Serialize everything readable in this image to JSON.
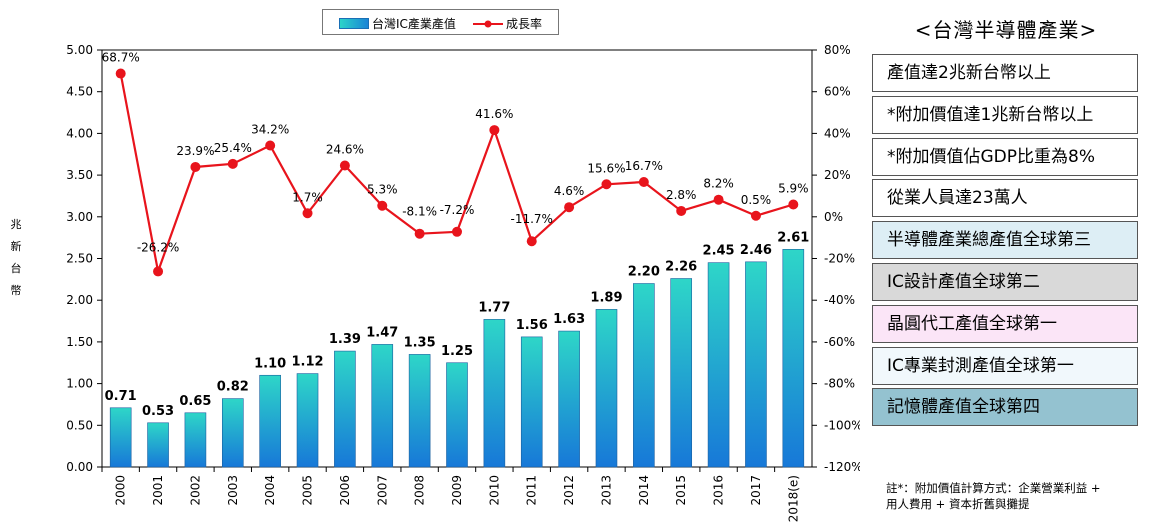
{
  "chart_data": {
    "type": "bar",
    "categories": [
      "2000",
      "2001",
      "2002",
      "2003",
      "2004",
      "2005",
      "2006",
      "2007",
      "2008",
      "2009",
      "2010",
      "2011",
      "2012",
      "2013",
      "2014",
      "2015",
      "2016",
      "2017",
      "2018(e)"
    ],
    "series": [
      {
        "name": "台灣IC產業產值",
        "type": "bar",
        "axis": "left",
        "values": [
          0.71,
          0.53,
          0.65,
          0.82,
          1.1,
          1.12,
          1.39,
          1.47,
          1.35,
          1.25,
          1.77,
          1.56,
          1.63,
          1.89,
          2.2,
          2.26,
          2.45,
          2.46,
          2.61
        ],
        "labels": [
          "0.71",
          "0.53",
          "0.65",
          "0.82",
          "1.10",
          "1.12",
          "1.39",
          "1.47",
          "1.35",
          "1.25",
          "1.77",
          "1.56",
          "1.63",
          "1.89",
          "2.20",
          "2.26",
          "2.45",
          "2.46",
          "2.61"
        ]
      },
      {
        "name": "成長率",
        "type": "line",
        "axis": "right",
        "values": [
          68.7,
          -26.2,
          23.9,
          25.4,
          34.2,
          1.7,
          24.6,
          5.3,
          -8.1,
          -7.2,
          41.6,
          -11.7,
          4.6,
          15.6,
          16.7,
          2.8,
          8.2,
          0.5,
          5.9
        ],
        "labels": [
          "68.7%",
          "-26.2%",
          "23.9%",
          "25.4%",
          "34.2%",
          "1.7%",
          "24.6%",
          "5.3%",
          "-8.1%",
          "-7.2%",
          "41.6%",
          "-11.7%",
          "4.6%",
          "15.6%",
          "16.7%",
          "2.8%",
          "8.2%",
          "0.5%",
          "5.9%"
        ]
      }
    ],
    "ylabel": "兆新台幣",
    "ylim": [
      0,
      5
    ],
    "y_ticks": [
      "0.00",
      "0.50",
      "1.00",
      "1.50",
      "2.00",
      "2.50",
      "3.00",
      "3.50",
      "4.00",
      "4.50",
      "5.00"
    ],
    "y2lim": [
      -120,
      80
    ],
    "y2_ticks": [
      "-120%",
      "-100%",
      "-80%",
      "-60%",
      "-40%",
      "-20%",
      "0%",
      "20%",
      "40%",
      "60%",
      "80%"
    ],
    "legend_position": "top-center",
    "grid": false,
    "colors": {
      "bar_top": "#2ed6c8",
      "bar_bottom": "#1778d8",
      "line": "#e8141c",
      "marker": "#e8141c"
    }
  },
  "side_panel": {
    "title": "<台灣半導體產業>",
    "items": [
      {
        "text": "產值達2兆新台幣以上",
        "bg": "#ffffff"
      },
      {
        "text": "*附加價值達1兆新台幣以上",
        "bg": "#ffffff"
      },
      {
        "text": "*附加價值佔GDP比重為8%",
        "bg": "#ffffff"
      },
      {
        "text": "從業人員達23萬人",
        "bg": "#ffffff"
      },
      {
        "text": "半導體產業總產值全球第三",
        "bg": "#ddeef5"
      },
      {
        "text": "IC設計產值全球第二",
        "bg": "#d9d9d9"
      },
      {
        "text": "晶圓代工產值全球第一",
        "bg": "#fbe5f7"
      },
      {
        "text": "IC專業封測產值全球第一",
        "bg": "#f1f8fc"
      },
      {
        "text": "記憶體產值全球第四",
        "bg": "#94c2d0"
      }
    ],
    "note_line1": "註*：附加價值計算方式：企業營業利益 +",
    "note_line2": "用人費用 + 資本折舊與攤提"
  }
}
